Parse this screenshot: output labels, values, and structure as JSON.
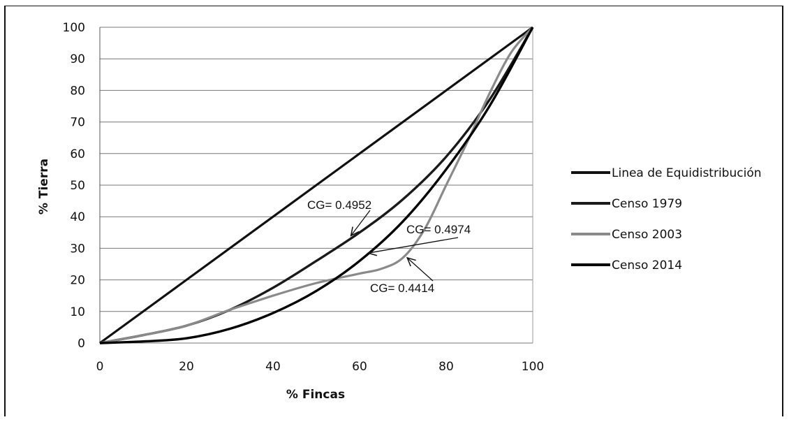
{
  "chart_data": {
    "type": "line",
    "title": "",
    "xlabel": "% Fincas",
    "ylabel": "% Tierra",
    "xlim": [
      0,
      100
    ],
    "ylim": [
      0,
      100
    ],
    "x_ticks": [
      0,
      20,
      40,
      60,
      80,
      100
    ],
    "y_ticks": [
      0,
      10,
      20,
      30,
      40,
      50,
      60,
      70,
      80,
      90,
      100
    ],
    "grid": "horizontal",
    "legend_position": "right",
    "series": [
      {
        "name": "Linea de Equidistribución",
        "color": "#111111",
        "points": [
          [
            0,
            0
          ],
          [
            100,
            100
          ]
        ]
      },
      {
        "name": "Censo 1979",
        "color": "#1a1a1a",
        "points": [
          [
            0,
            0
          ],
          [
            10,
            2.5
          ],
          [
            20,
            5.5
          ],
          [
            30,
            10.5
          ],
          [
            40,
            17.5
          ],
          [
            50,
            26
          ],
          [
            60,
            35
          ],
          [
            70,
            45.5
          ],
          [
            80,
            59
          ],
          [
            90,
            77
          ],
          [
            100,
            100
          ]
        ]
      },
      {
        "name": "Censo 2003",
        "color": "#8a8a8a",
        "points": [
          [
            0,
            0
          ],
          [
            10,
            2.5
          ],
          [
            20,
            5.5
          ],
          [
            30,
            10.5
          ],
          [
            40,
            15
          ],
          [
            50,
            19
          ],
          [
            60,
            22
          ],
          [
            65,
            23.5
          ],
          [
            70,
            27
          ],
          [
            75,
            36
          ],
          [
            80,
            50
          ],
          [
            85,
            64
          ],
          [
            90,
            79
          ],
          [
            95,
            92
          ],
          [
            100,
            100
          ]
        ]
      },
      {
        "name": "Censo 2014",
        "color": "#000000",
        "points": [
          [
            0,
            0
          ],
          [
            10,
            0.5
          ],
          [
            20,
            1.5
          ],
          [
            30,
            4.5
          ],
          [
            40,
            9.5
          ],
          [
            50,
            16.5
          ],
          [
            60,
            26
          ],
          [
            70,
            38.5
          ],
          [
            80,
            55
          ],
          [
            90,
            75
          ],
          [
            100,
            100
          ]
        ]
      }
    ],
    "annotations": [
      {
        "text": "CG= 0.4952",
        "series": "Censo 1979",
        "arrow_to": [
          58,
          34
        ]
      },
      {
        "text": "CG= 0.4974",
        "series": "Censo 2014",
        "arrow_to": [
          62,
          28.5
        ]
      },
      {
        "text": "CG= 0.4414",
        "series": "Censo 2003",
        "arrow_to": [
          71,
          27
        ]
      }
    ]
  }
}
